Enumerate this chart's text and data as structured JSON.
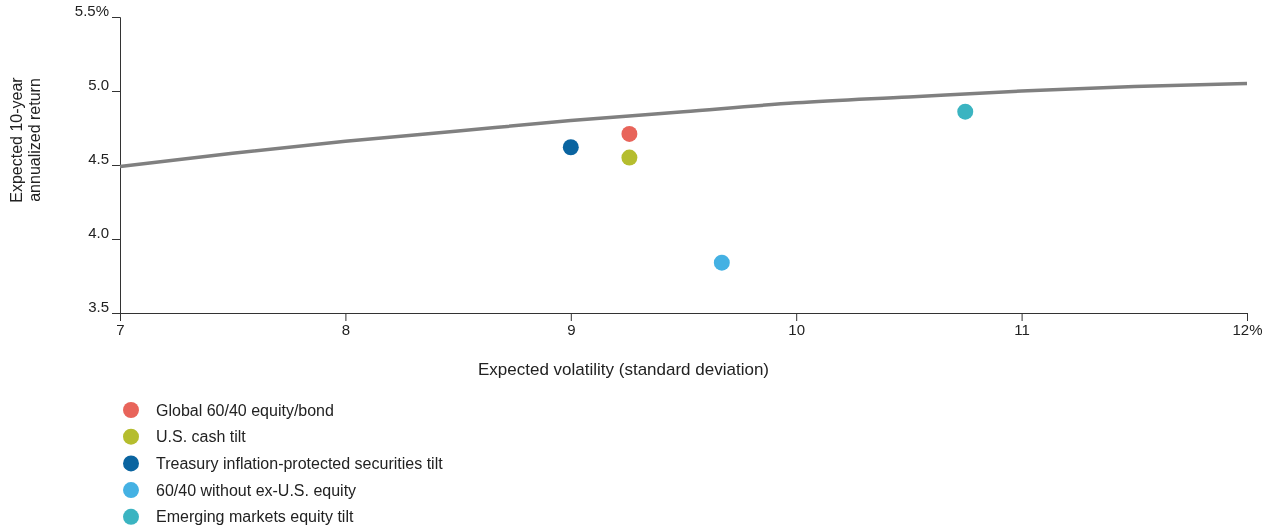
{
  "chart_data": {
    "type": "scatter",
    "xlabel": "Expected volatility (standard deviation)",
    "ylabel": "Expected 10-year\nannualized return",
    "xlim": [
      7,
      12
    ],
    "xticks": [
      7,
      8,
      9,
      10,
      11,
      {
        "value": 12,
        "label": "12%"
      }
    ],
    "ylim": [
      3.5,
      5.5
    ],
    "yticks": [
      {
        "value": 3.5,
        "label": "3.5"
      },
      {
        "value": 4,
        "label": "4.0"
      },
      {
        "value": 4.5,
        "label": "4.5"
      },
      {
        "value": 5,
        "label": "5.0"
      },
      {
        "value": 5.5,
        "label": "5.5%"
      }
    ],
    "grid": false,
    "legend": "bottom left",
    "marker": "circle",
    "series": [
      {
        "type": "line",
        "color": "#808080",
        "line_style": "solid",
        "marker": "none",
        "x": [
          7,
          7.5,
          8,
          8.5,
          9,
          9.5,
          10,
          10.5,
          11,
          11.5,
          12
        ],
        "values": [
          4.49,
          4.58,
          4.66,
          4.73,
          4.8,
          4.86,
          4.92,
          4.96,
          5.0,
          5.03,
          5.05
        ]
      },
      {
        "name": "Global 60/40 equity/bond",
        "color": "#e8645a",
        "x": [
          9.26
        ],
        "values": [
          4.71
        ]
      },
      {
        "name": "U.S. cash tilt",
        "color": "#b5bd2e",
        "x": [
          9.26
        ],
        "values": [
          4.55
        ]
      },
      {
        "name": "Treasury inflation-protected securities tilt",
        "color": "#0a64a0",
        "x": [
          9.0
        ],
        "values": [
          4.62
        ]
      },
      {
        "name": "60/40 without ex-U.S. equity",
        "color": "#44b1e3",
        "x": [
          9.67
        ],
        "values": [
          3.84
        ]
      },
      {
        "name": "Emerging markets equity tilt",
        "color": "#3bb4c1",
        "x": [
          10.75
        ],
        "values": [
          4.86
        ]
      }
    ]
  }
}
